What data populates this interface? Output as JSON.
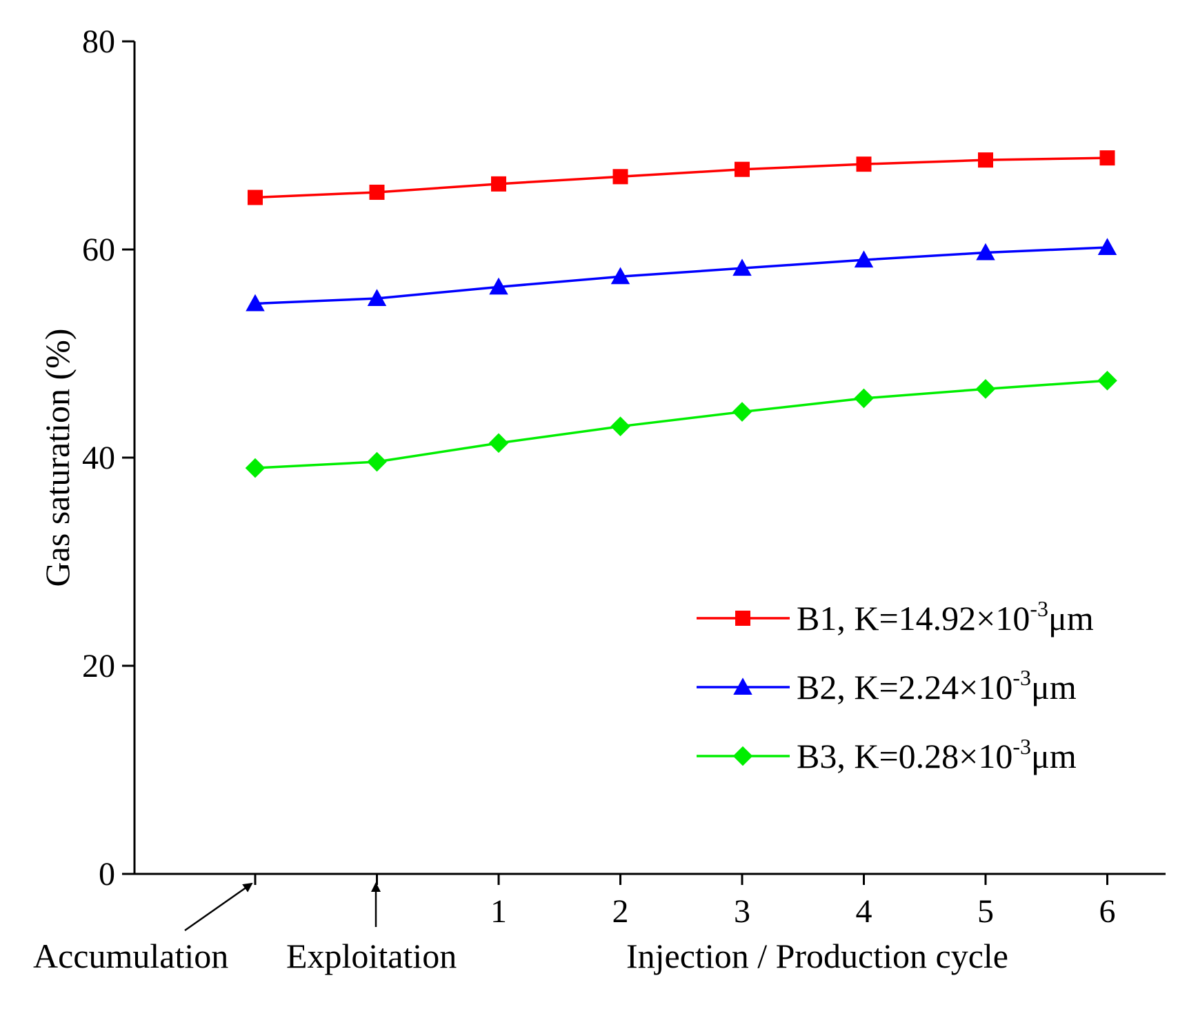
{
  "chart_data": {
    "type": "line",
    "title": "",
    "ylabel": "Gas saturation (%)",
    "xlabel": "Injection / Production cycle",
    "ylim": [
      0,
      80
    ],
    "yticks": [
      "0",
      "20",
      "40",
      "60",
      "80"
    ],
    "xticks": [
      "1",
      "2",
      "3",
      "4",
      "5",
      "6"
    ],
    "x_annotations": [
      "Accumulation",
      "Exploitation"
    ],
    "grid": false,
    "legend_position": "lower-right",
    "x": [
      "Accumulation",
      "Exploitation",
      "1",
      "2",
      "3",
      "4",
      "5",
      "6"
    ],
    "series": [
      {
        "name": "B1, K=14.92×10",
        "name_sup": "-3",
        "name_unit": "μm",
        "marker": "square",
        "color": "#ff0000",
        "values": [
          65.0,
          65.5,
          66.3,
          67.0,
          67.7,
          68.2,
          68.6,
          68.8
        ]
      },
      {
        "name": "B2, K=2.24×10",
        "name_sup": "-3",
        "name_unit": "μm",
        "marker": "triangle",
        "color": "#0000ff",
        "values": [
          54.8,
          55.3,
          56.4,
          57.4,
          58.2,
          59.0,
          59.7,
          60.2
        ]
      },
      {
        "name": "B3, K=0.28×10",
        "name_sup": "-3",
        "name_unit": "μm",
        "marker": "diamond",
        "color": "#00ee00",
        "values": [
          39.0,
          39.6,
          41.4,
          43.0,
          44.4,
          45.7,
          46.6,
          47.4
        ]
      }
    ]
  }
}
